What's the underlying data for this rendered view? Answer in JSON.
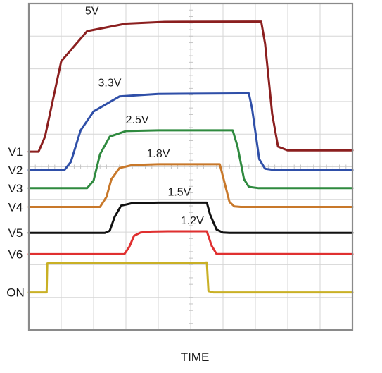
{
  "chart_data": {
    "type": "line",
    "title": "",
    "xlabel": "TIME",
    "ylabel": "",
    "grid": true,
    "x_divisions": 10,
    "y_divisions": 10,
    "series": [
      {
        "name": "V1",
        "annotation": "5V",
        "color": "#8b1f1f",
        "x": [
          0,
          0.3,
          0.5,
          1.0,
          1.8,
          3.0,
          4.2,
          6.9,
          7.18,
          7.3,
          7.52,
          7.7,
          8.0,
          10
        ],
        "y": [
          4.1,
          4.1,
          4.7,
          7.7,
          8.9,
          9.2,
          9.27,
          9.28,
          9.28,
          8.4,
          5.6,
          4.3,
          4.15,
          4.15
        ]
      },
      {
        "name": "V2",
        "annotation": "3.3V",
        "color": "#2f4fa8",
        "x": [
          0,
          1.1,
          1.3,
          1.6,
          2.0,
          2.8,
          4.0,
          6.5,
          6.8,
          6.9,
          7.12,
          7.3,
          7.6,
          10
        ],
        "y": [
          3.37,
          3.37,
          3.7,
          4.95,
          5.7,
          6.3,
          6.4,
          6.42,
          6.42,
          5.8,
          3.8,
          3.42,
          3.37,
          3.37
        ]
      },
      {
        "name": "V3",
        "annotation": "2.5V",
        "color": "#2f8a3f",
        "x": [
          0,
          1.8,
          2.0,
          2.2,
          2.5,
          3.0,
          4.0,
          6.1,
          6.3,
          6.45,
          6.65,
          6.8,
          7.1,
          10
        ],
        "y": [
          2.65,
          2.65,
          2.95,
          4.0,
          4.7,
          4.92,
          4.95,
          4.95,
          4.95,
          4.3,
          3.0,
          2.7,
          2.65,
          2.65
        ]
      },
      {
        "name": "V4",
        "annotation": "1.8V",
        "color": "#c8782a",
        "x": [
          0,
          2.2,
          2.4,
          2.55,
          2.8,
          3.2,
          4.0,
          5.7,
          5.9,
          6.0,
          6.2,
          6.35,
          6.55,
          10
        ],
        "y": [
          1.9,
          1.9,
          2.3,
          3.0,
          3.45,
          3.57,
          3.6,
          3.6,
          3.6,
          3.1,
          2.1,
          1.92,
          1.9,
          1.9
        ]
      },
      {
        "name": "V5",
        "annotation": "1.5V",
        "color": "#111111",
        "x": [
          0,
          2.35,
          2.5,
          2.65,
          2.85,
          3.2,
          4.0,
          5.3,
          5.5,
          5.6,
          5.8,
          6.0,
          6.2,
          10
        ],
        "y": [
          0.87,
          0.87,
          0.95,
          1.5,
          1.95,
          2.05,
          2.07,
          2.07,
          2.07,
          1.6,
          1.0,
          0.88,
          0.87,
          0.87
        ]
      },
      {
        "name": "V6",
        "annotation": "1.2V",
        "color": "#e03030",
        "x": [
          0,
          2.95,
          3.1,
          3.25,
          3.45,
          3.8,
          4.3,
          5.3,
          5.5,
          5.65,
          5.8,
          10
        ],
        "y": [
          0.02,
          0.02,
          0.3,
          0.75,
          0.88,
          0.92,
          0.93,
          0.93,
          0.93,
          0.35,
          0.03,
          0.02
        ]
      },
      {
        "name": "ON",
        "annotation": "",
        "color": "#c9b025",
        "x": [
          0,
          0.55,
          0.57,
          0.7,
          5.3,
          5.5,
          5.55,
          5.7,
          10
        ],
        "y": [
          -1.5,
          -1.5,
          -0.35,
          -0.33,
          -0.33,
          -0.31,
          -1.45,
          -1.5,
          -1.5
        ]
      }
    ]
  }
}
